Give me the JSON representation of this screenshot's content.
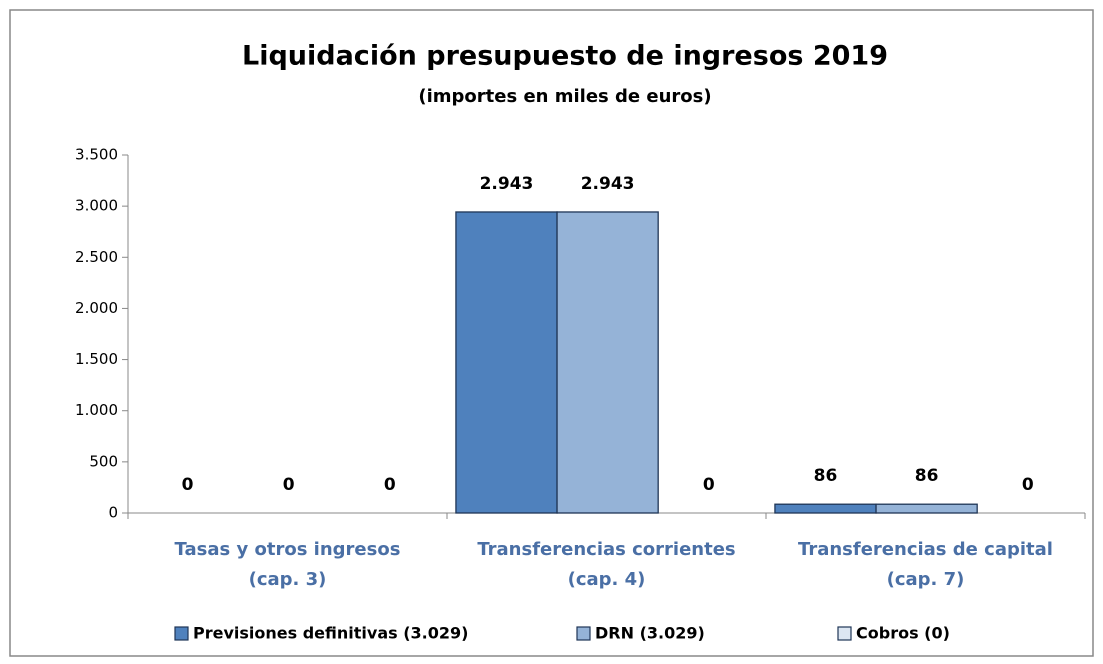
{
  "chart_data": {
    "type": "bar",
    "title": "Liquidación presupuesto de ingresos 2019",
    "subtitle": "(importes en miles de euros)",
    "categories": [
      [
        "Tasas y otros ingresos",
        "(cap. 3)"
      ],
      [
        "Transferencias corrientes",
        "(cap. 4)"
      ],
      [
        "Transferencias de capital",
        "(cap. 7)"
      ]
    ],
    "series": [
      {
        "name": "Previsiones definitivas (3.029)",
        "color": "#4f81bd",
        "values": [
          0,
          2943,
          86
        ],
        "value_labels": [
          "0",
          "2.943",
          "86"
        ]
      },
      {
        "name": "DRN (3.029)",
        "color": "#95b3d7",
        "values": [
          0,
          2943,
          86
        ],
        "value_labels": [
          "0",
          "2.943",
          "86"
        ]
      },
      {
        "name": "Cobros (0)",
        "color": "#dce6f2",
        "values": [
          0,
          0,
          0
        ],
        "value_labels": [
          "0",
          "0",
          "0"
        ]
      }
    ],
    "ylim": [
      0,
      3500
    ],
    "yticks": [
      0,
      500,
      {
        "value": 1000,
        "label": "1.000"
      },
      {
        "value": 1500,
        "label": "1.500"
      },
      {
        "value": 2000,
        "label": "2.000"
      },
      {
        "value": 2500,
        "label": "2.500"
      },
      {
        "value": 3000,
        "label": "3.000"
      },
      {
        "value": 3500,
        "label": "3.500"
      }
    ],
    "grid": false,
    "legend": "bottom"
  }
}
